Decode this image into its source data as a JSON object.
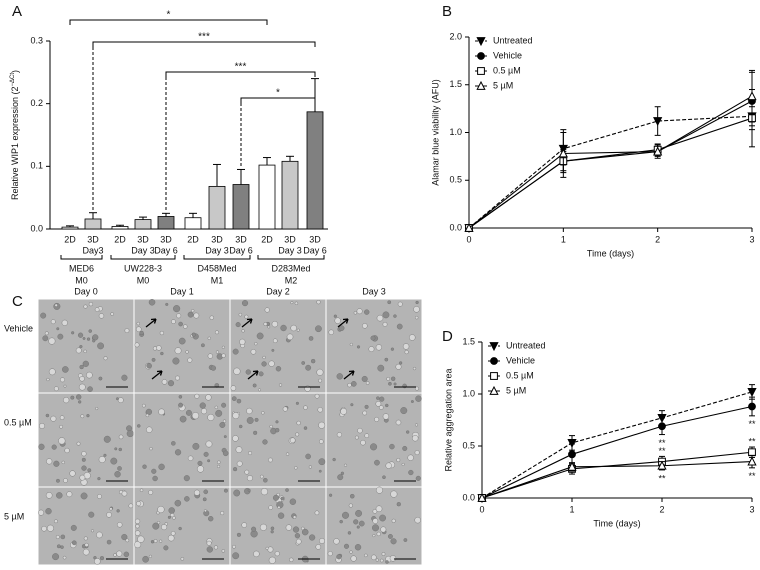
{
  "chart_data": [
    {
      "type": "grouped-bar",
      "panel": "A",
      "ylabel": "Relative WIP1 expression (2",
      "ylabel_sup": "−ΔCt",
      "ylabel_end": ")",
      "ylim": [
        0,
        0.3
      ],
      "yticks": [
        {
          "value": 0,
          "label": "0.0"
        },
        0.1,
        0.2,
        0.3
      ],
      "groups": [
        {
          "name": [
            "MED6",
            "M0"
          ],
          "categories": [
            [
              "2D"
            ],
            [
              "3D",
              "Day3"
            ]
          ],
          "values": [
            0.003,
            0.016
          ],
          "errors": [
            0.002,
            0.01
          ],
          "colors": [
            "#ffffff",
            "#c8c8c8"
          ]
        },
        {
          "name": [
            "UW228-3",
            "M0"
          ],
          "categories": [
            [
              "2D"
            ],
            [
              "3D",
              "Day 3"
            ],
            [
              "3D",
              "Day 6"
            ]
          ],
          "values": [
            0.004,
            0.015,
            0.02
          ],
          "errors": [
            0.002,
            0.004,
            0.005
          ],
          "colors": [
            "#ffffff",
            "#c8c8c8",
            "#808080"
          ]
        },
        {
          "name": [
            "D458Med",
            "M1"
          ],
          "categories": [
            [
              "2D"
            ],
            [
              "3D",
              "Day 3"
            ],
            [
              "3D",
              "Day 6"
            ]
          ],
          "values": [
            0.018,
            0.068,
            0.071
          ],
          "errors": [
            0.007,
            0.035,
            0.024
          ],
          "colors": [
            "#ffffff",
            "#c8c8c8",
            "#808080"
          ]
        },
        {
          "name": [
            "D283Med",
            "M2"
          ],
          "categories": [
            [
              "2D"
            ],
            [
              "3D",
              "Day 3"
            ],
            [
              "3D",
              "Day 6"
            ]
          ],
          "values": [
            0.102,
            0.108,
            0.187
          ],
          "errors": [
            0.012,
            0.008,
            0.053
          ],
          "colors": [
            "#ffffff",
            "#c8c8c8",
            "#808080"
          ]
        }
      ],
      "significance": [
        "*",
        "***",
        "***",
        "*"
      ]
    },
    {
      "type": "line",
      "panel": "B",
      "xlabel": "Time (days)",
      "ylabel": "Alamar blue viability (AFU)",
      "x": [
        0,
        1,
        2,
        3
      ],
      "xlim": [
        0,
        3
      ],
      "xticks": [
        0,
        1,
        2,
        3
      ],
      "ylim": [
        0,
        2
      ],
      "yticks": [
        {
          "value": 0,
          "label": "0.0"
        },
        0.5,
        {
          "value": 1,
          "label": "1.0"
        },
        1.5,
        {
          "value": 2,
          "label": "2.0"
        }
      ],
      "legend": "top-left",
      "series": [
        {
          "name": "Untreated",
          "color": "#000000",
          "marker": "triangle-down",
          "filled": true,
          "dashed": true,
          "values": [
            0,
            0.83,
            1.12,
            1.17
          ],
          "errors": [
            0,
            0.17,
            0.15,
            0.1
          ]
        },
        {
          "name": "Vehicle",
          "color": "#000000",
          "marker": "circle",
          "filled": true,
          "dashed": false,
          "values": [
            0,
            0.7,
            0.8,
            1.33
          ],
          "errors": [
            0,
            0.1,
            0.05,
            0.3
          ]
        },
        {
          "name": "0.5 µM",
          "color": "#000000",
          "marker": "square",
          "filled": false,
          "dashed": false,
          "values": [
            0,
            0.7,
            0.82,
            1.15
          ],
          "errors": [
            0,
            0.12,
            0.06,
            0.3
          ]
        },
        {
          "name": "5 µM",
          "color": "#000000",
          "marker": "triangle",
          "filled": false,
          "dashed": false,
          "values": [
            0,
            0.78,
            0.8,
            1.38
          ],
          "errors": [
            0,
            0.25,
            0.07,
            0.27
          ]
        }
      ]
    },
    {
      "type": "line",
      "panel": "D",
      "xlabel": "Time (days)",
      "ylabel": "Relative aggregation area",
      "x": [
        0,
        1,
        2,
        3
      ],
      "xlim": [
        0,
        3
      ],
      "xticks": [
        0,
        1,
        2,
        3
      ],
      "ylim": [
        0,
        1.5
      ],
      "yticks": [
        {
          "value": 0,
          "label": "0.0"
        },
        0.5,
        {
          "value": 1,
          "label": "1.0"
        },
        1.5
      ],
      "legend": "top-left",
      "series": [
        {
          "name": "Untreated",
          "color": "#000000",
          "marker": "triangle-down",
          "filled": true,
          "dashed": true,
          "values": [
            0,
            0.53,
            0.77,
            1.02
          ],
          "errors": [
            0,
            0.07,
            0.07,
            0.07
          ],
          "stars": [
            null,
            null,
            null,
            null
          ]
        },
        {
          "name": "Vehicle",
          "color": "#000000",
          "marker": "circle",
          "filled": true,
          "dashed": false,
          "values": [
            0,
            0.42,
            0.69,
            0.88
          ],
          "errors": [
            0,
            0.1,
            0.08,
            0.09
          ],
          "stars": [
            null,
            null,
            "**",
            "**"
          ]
        },
        {
          "name": "0.5 µM",
          "color": "#000000",
          "marker": "square",
          "filled": false,
          "dashed": false,
          "values": [
            0,
            0.28,
            0.35,
            0.44
          ],
          "errors": [
            0,
            0.05,
            0.05,
            0.05
          ],
          "stars": [
            null,
            null,
            "**",
            "**"
          ]
        },
        {
          "name": "5 µM",
          "color": "#000000",
          "marker": "triangle",
          "filled": false,
          "dashed": false,
          "values": [
            0,
            0.3,
            0.31,
            0.35
          ],
          "errors": [
            0,
            0.04,
            0.04,
            0.06
          ],
          "stars": [
            null,
            null,
            "**",
            "**"
          ]
        }
      ]
    }
  ],
  "images": {
    "panel": "C",
    "columns": [
      "Day 0",
      "Day 1",
      "Day 2",
      "Day 3"
    ],
    "rows": [
      "Vehicle",
      "0.5 µM",
      "5 µM"
    ]
  }
}
